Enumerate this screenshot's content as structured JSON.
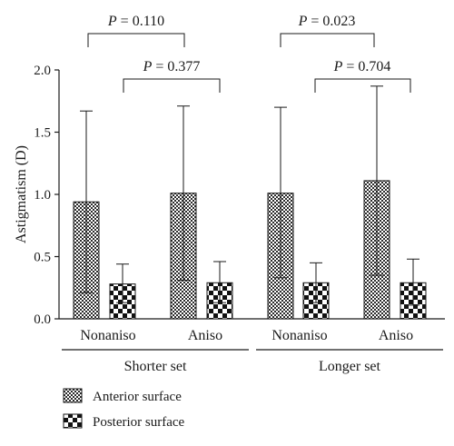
{
  "chart_data": {
    "type": "bar",
    "ylabel": "Astigmatism (D)",
    "ylim": [
      0,
      2.0
    ],
    "yticks": [
      "0.0",
      "0.5",
      "1.0",
      "1.5",
      "2.0"
    ],
    "groups": [
      {
        "label": "Nonaniso",
        "set": "Shorter set"
      },
      {
        "label": "Aniso",
        "set": "Shorter set"
      },
      {
        "label": "Nonaniso",
        "set": "Longer set"
      },
      {
        "label": "Aniso",
        "set": "Longer set"
      }
    ],
    "sets": [
      "Shorter set",
      "Longer set"
    ],
    "series": [
      {
        "name": "Anterior surface",
        "pattern": "fine-checker",
        "values": [
          0.94,
          1.01,
          1.01,
          1.11
        ],
        "error_low": [
          0.21,
          0.31,
          0.33,
          0.35
        ],
        "error_high": [
          1.67,
          1.71,
          1.7,
          1.87
        ]
      },
      {
        "name": "Posterior surface",
        "pattern": "coarse-checker",
        "values": [
          0.28,
          0.29,
          0.29,
          0.29
        ],
        "error_low": [
          0.13,
          0.13,
          0.13,
          0.11
        ],
        "error_high": [
          0.44,
          0.46,
          0.45,
          0.48
        ]
      }
    ],
    "comparisons": [
      {
        "label": "P = 0.110"
      },
      {
        "label": "P = 0.377"
      },
      {
        "label": "P = 0.023"
      },
      {
        "label": "P = 0.704"
      }
    ],
    "colors": {
      "ink": "#1a1a1a",
      "background": "#ffffff"
    },
    "grid": false,
    "legend_position": "bottom-left"
  }
}
